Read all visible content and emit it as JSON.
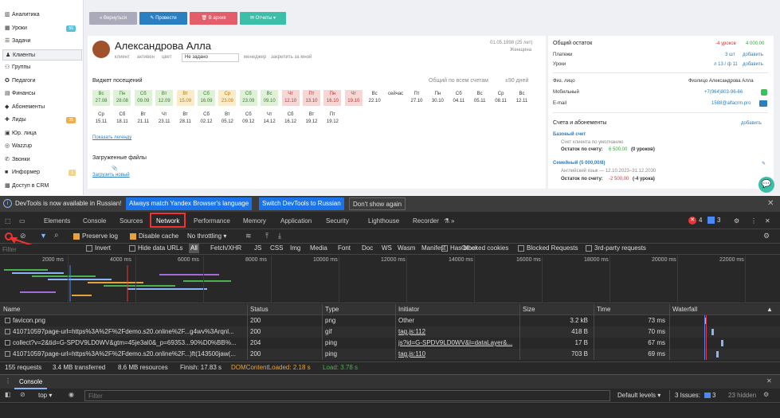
{
  "sidebar": {
    "items": [
      {
        "label": "Аналитика",
        "icon": "chart-icon"
      },
      {
        "label": "Уроки",
        "icon": "calendar-icon",
        "badge": "56",
        "badge_color": "#5bc0de"
      },
      {
        "label": "Задачи",
        "icon": "tasks-icon"
      },
      {
        "label": "Клиенты",
        "icon": "user-icon",
        "active": true
      },
      {
        "label": "Группы",
        "icon": "group-icon"
      },
      {
        "label": "Педагоги",
        "icon": "teacher-icon"
      },
      {
        "label": "Финансы",
        "icon": "wallet-icon"
      },
      {
        "label": "Абонементы",
        "icon": "tag-icon"
      },
      {
        "label": "Лиды",
        "icon": "leads-icon",
        "badge": "35",
        "badge_color": "#f0ad4e"
      },
      {
        "label": "Юр. лица",
        "icon": "building-icon"
      },
      {
        "label": "Wazzup",
        "icon": "chat-icon"
      },
      {
        "label": "Звонки",
        "icon": "phone-icon"
      },
      {
        "label": "Информер",
        "icon": "info-icon",
        "badge": "1",
        "badge_color": "#f0d58a"
      },
      {
        "label": "Доступ в CRM",
        "icon": "lock-icon"
      }
    ]
  },
  "toolbar": {
    "buttons": [
      "« Вернуться",
      "✎ Провести",
      "🗑 В архив",
      "✉ Отчеты ▾"
    ]
  },
  "client": {
    "name": "Александрова Алла",
    "tags": [
      "клиент",
      "активен",
      "цвет"
    ],
    "select": "Не задано",
    "manager": "менеджер",
    "fix": "закрепить за мной",
    "birth": "01.05.1998 (25 лет)",
    "gender": "Женщина"
  },
  "visits": {
    "title": "Виджет посещений",
    "filter": "Общий по всем счетам",
    "period": "±90 дней",
    "row1": [
      [
        "Вс",
        "27.08",
        "g"
      ],
      [
        "Пн",
        "28.08",
        "g"
      ],
      [
        "Сб",
        "09.09",
        "g"
      ],
      [
        "Вт",
        "12.09",
        "g"
      ],
      [
        "Вт",
        "15.09",
        "o"
      ],
      [
        "Сб",
        "16.09",
        "g"
      ],
      [
        "Ср",
        "23.09",
        "o"
      ],
      [
        "Сб",
        "23.09",
        "g"
      ],
      [
        "Вс",
        "09.10",
        "g"
      ],
      [
        "Чт",
        "12.10",
        "r"
      ],
      [
        "Пт",
        "13.10",
        "r"
      ],
      [
        "Пн",
        "16.10",
        "r"
      ],
      [
        "Чт",
        "19.10",
        "r"
      ],
      [
        "Вс",
        "22.10",
        "w"
      ],
      [
        "",
        "сейчас",
        "w"
      ],
      [
        "Пт",
        "27.10",
        "w"
      ],
      [
        "Пн",
        "30.10",
        "w"
      ],
      [
        "Сб",
        "04.11",
        "w"
      ],
      [
        "Вс",
        "05.11",
        "w"
      ],
      [
        "Ср",
        "08.11",
        "w"
      ],
      [
        "Вс",
        "12.11",
        "w"
      ]
    ],
    "row2": [
      [
        "Ср",
        "15.11"
      ],
      [
        "Сб",
        "18.11"
      ],
      [
        "Вт",
        "21.11"
      ],
      [
        "Чт",
        "23.11"
      ],
      [
        "Вт",
        "28.11"
      ],
      [
        "Сб",
        "02.12"
      ],
      [
        "Вт",
        "05.12"
      ],
      [
        "Сб",
        "09.12"
      ],
      [
        "Чт",
        "14.12"
      ],
      [
        "Сб",
        "16.12"
      ],
      [
        "Вт",
        "19.12"
      ],
      [
        "Пт",
        "19.12"
      ]
    ],
    "legend": "Показать легенду"
  },
  "files": {
    "title": "Загруженные файлы",
    "upload": "Загрузить новый"
  },
  "summary": {
    "title": "Общий остаток",
    "lessons_red": "-4 уроков",
    "amount": "4 000,00",
    "payments_label": "Платежи",
    "payments_val": "3 шт",
    "lessons_label": "Уроки",
    "lessons_val": "л 13 / ф 11",
    "add": "добавить",
    "person_label": "Физ. лицо",
    "person_val": "Физлицо Александрова Алла",
    "mobile_label": "Мобильный",
    "mobile_val": "+7(964)803-96-66",
    "email_label": "E-mail",
    "email_val": "1588@alfacrm.pro"
  },
  "accounts": {
    "title": "Счета и абонементы",
    "add": "добавить",
    "base": "Базовый счет",
    "base_sub": "Счет клиента по умолчанию",
    "base_bal_label": "Остаток по счету:",
    "base_bal": "6 500,00",
    "base_bal_extra": "(0 уроков)",
    "family": "Семейный (5 000,00/8)",
    "family_sub": "Английский язык — 12.10.2023–31.12.2030",
    "family_bal_label": "Остаток по счету:",
    "family_bal": "-2 500,00",
    "family_bal_extra": "(-4 урока)"
  },
  "banner": {
    "text": "DevTools is now available in Russian!",
    "btn1": "Always match Yandex Browser's language",
    "btn2": "Switch DevTools to Russian",
    "btn3": "Don't show again"
  },
  "devtools": {
    "tabs": [
      "Elements",
      "Console",
      "Sources",
      "Network",
      "Performance",
      "Memory",
      "Application",
      "Security",
      "Lighthouse",
      "Recorder"
    ],
    "active": "Network",
    "errors": "4",
    "messages": "3",
    "preserve_log": "Preserve log",
    "disable_cache": "Disable cache",
    "throttling": "No throttling",
    "filter_placeholder": "Filter",
    "invert": "Invert",
    "hide_data": "Hide data URLs",
    "types": [
      "All",
      "Fetch/XHR",
      "JS",
      "CSS",
      "Img",
      "Media",
      "Font",
      "Doc",
      "WS",
      "Wasm",
      "Manifest",
      "Other"
    ],
    "blocked_cookies": "Has blocked cookies",
    "blocked_requests": "Blocked Requests",
    "third_party": "3rd-party requests",
    "timeline": [
      "2000 ms",
      "4000 ms",
      "6000 ms",
      "8000 ms",
      "10000 ms",
      "12000 ms",
      "14000 ms",
      "16000 ms",
      "18000 ms",
      "20000 ms",
      "22000 ms"
    ],
    "columns": [
      "Name",
      "Status",
      "Type",
      "Initiator",
      "Size",
      "Time",
      "Waterfall"
    ],
    "rows": [
      [
        "favicon.png",
        "200",
        "png",
        "Other",
        "3.2 kB",
        "73 ms"
      ],
      [
        "410710597page-url=https%3A%2F%2Fdemo.s20.online%2F...g4wv%3Arqnl...",
        "200",
        "gif",
        "tag.js:112",
        "418 B",
        "70 ms"
      ],
      [
        "collect?v=2&tid=G-SPDV9LD0WV&gtm=45je3al0&_p=69353...90%D0%BB%...",
        "204",
        "ping",
        "js?id=G-SPDV9LD0WV&l=dataLayer&...",
        "17 B",
        "67 ms"
      ],
      [
        "410710597page-url=https%3A%2F%2Fdemo.s20.online%2F...)ft(143500jaw(...",
        "200",
        "ping",
        "tag.js:110",
        "703 B",
        "69 ms"
      ]
    ],
    "status": {
      "requests": "155 requests",
      "transferred": "3.4 MB transferred",
      "resources": "8.6 MB resources",
      "finish": "Finish: 17.83 s",
      "dcl": "DOMContentLoaded: 2.18 s",
      "load": "Load: 3.78 s"
    },
    "drawer": {
      "tab": "Console",
      "context": "top",
      "filter": "Filter",
      "levels": "Default levels ▾",
      "issues_label": "3 Issues:",
      "issues_count": "3",
      "hidden": "23 hidden"
    }
  }
}
